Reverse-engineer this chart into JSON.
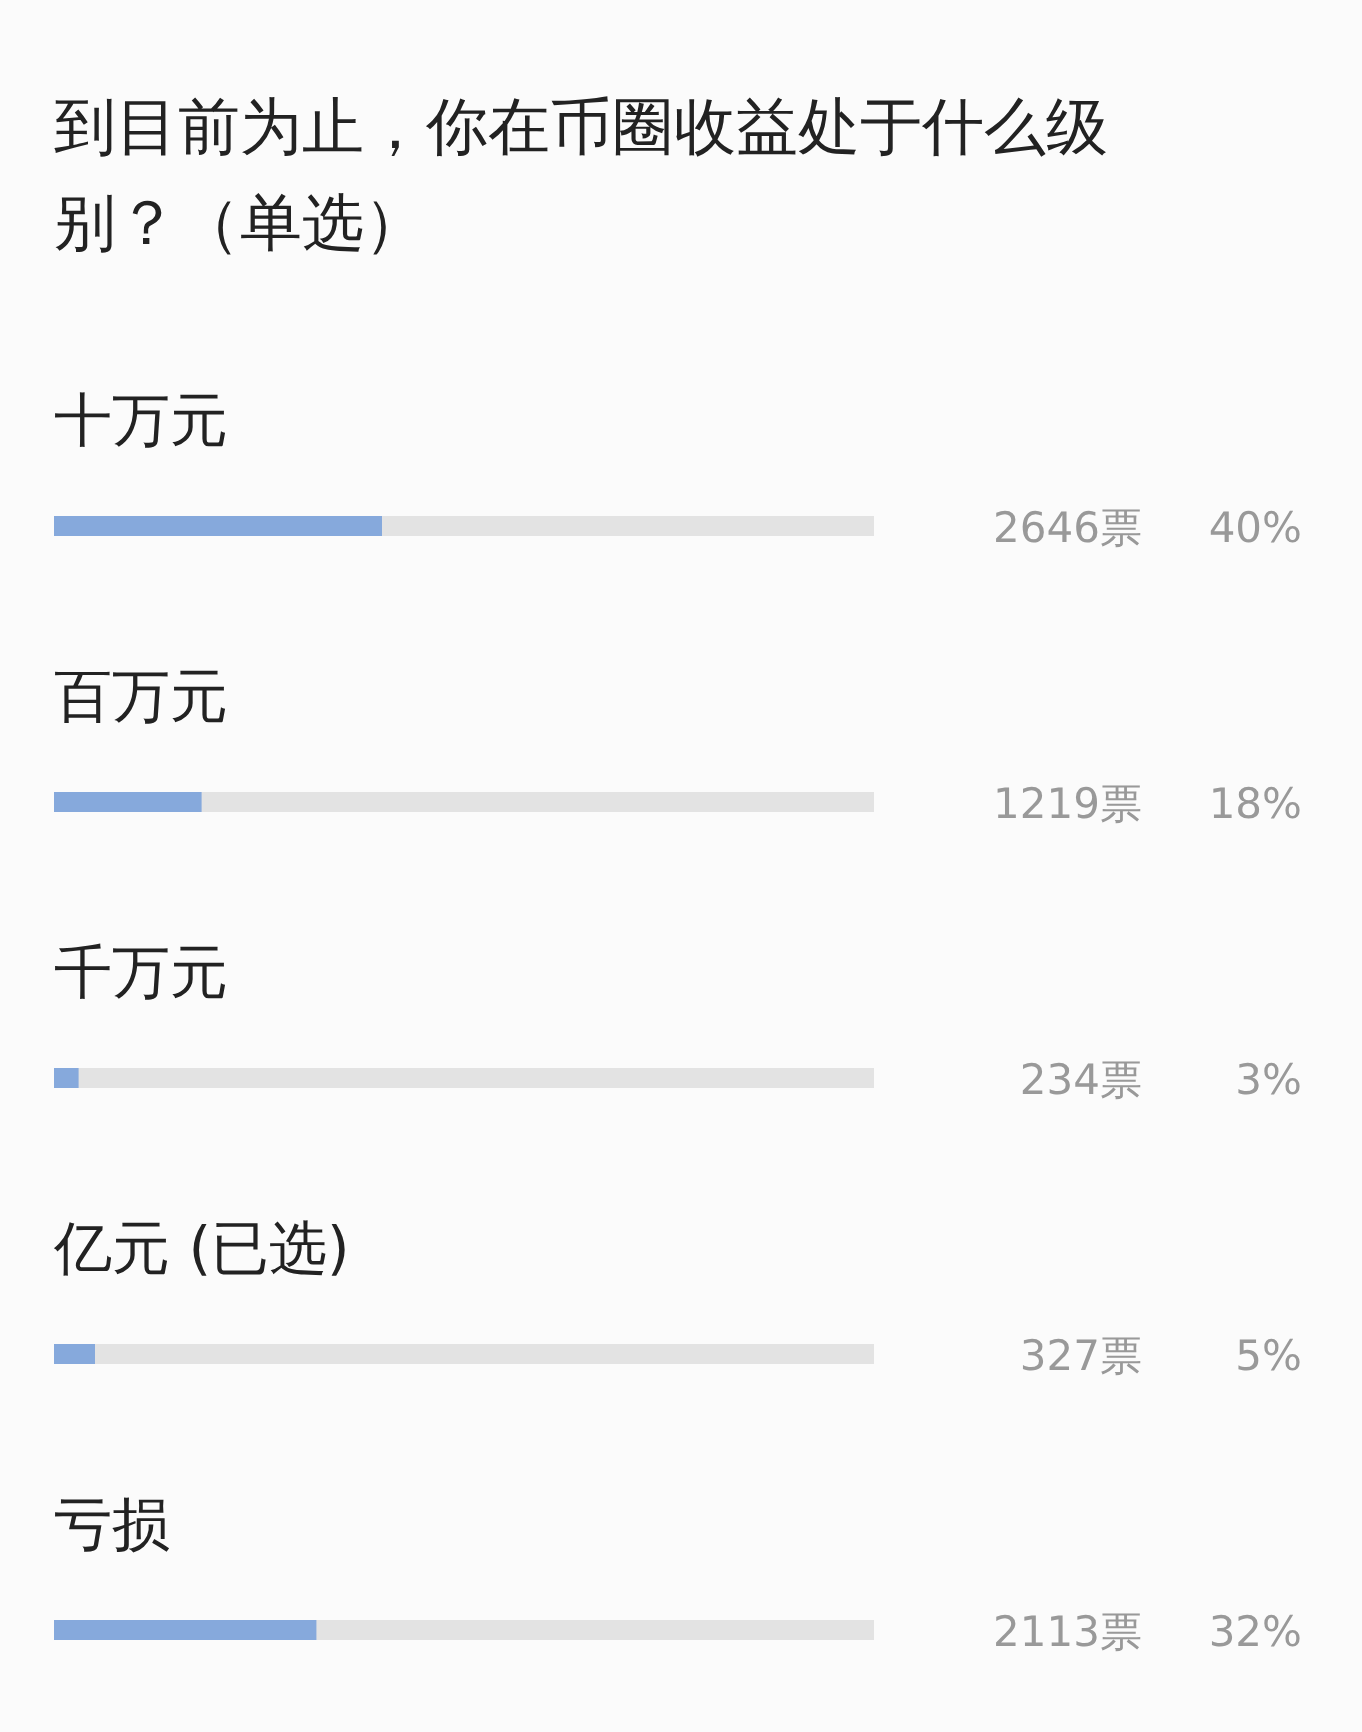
{
  "chart_data": {
    "type": "bar",
    "orientation": "horizontal",
    "title": "到目前为止，你在币圈收益处于什么级别？（单选）",
    "categories": [
      "十万元",
      "百万元",
      "千万元",
      "亿元 (已选)",
      "亏损"
    ],
    "values": [
      40,
      18,
      3,
      5,
      32
    ],
    "value_labels": [
      "40%",
      "18%",
      "3%",
      "5%",
      "32%"
    ],
    "annotations": [
      "2646票",
      "1219票",
      "234票",
      "327票",
      "2113票"
    ],
    "color": "#86a9dc",
    "xlim": [
      0,
      100
    ],
    "tick_labels": false
  }
}
